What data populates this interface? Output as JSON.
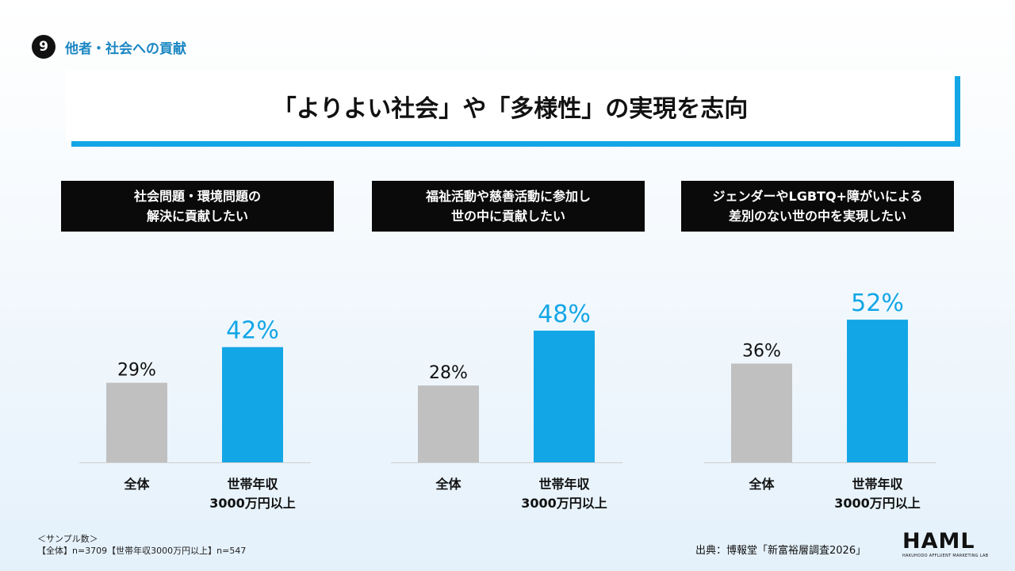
{
  "section": {
    "number": "9",
    "title": "他者・社会への貢献"
  },
  "title": "「よりよい社会」や「多様性」の実現を志向",
  "panels": [
    {
      "header": [
        "社会問題・環境問題の",
        "解決に貢献したい"
      ]
    },
    {
      "header": [
        "福祉活動や慈善活動に参加し",
        "世の中に貢献したい"
      ]
    },
    {
      "header": [
        "ジェンダーやLGBTQ+障がいによる",
        "差別のない世の中を実現したい"
      ]
    }
  ],
  "chart_data": [
    {
      "type": "bar",
      "categories": [
        "全体",
        "世帯年収\n3000万円以上"
      ],
      "values": [
        29,
        42
      ],
      "value_labels": [
        "29%",
        "42%"
      ],
      "title": "社会問題・環境問題の解決に貢献したい",
      "ylim": [
        0,
        60
      ]
    },
    {
      "type": "bar",
      "categories": [
        "全体",
        "世帯年収\n3000万円以上"
      ],
      "values": [
        28,
        48
      ],
      "value_labels": [
        "28%",
        "48%"
      ],
      "title": "福祉活動や慈善活動に参加し世の中に貢献したい",
      "ylim": [
        0,
        60
      ]
    },
    {
      "type": "bar",
      "categories": [
        "全体",
        "世帯年収\n3000万円以上"
      ],
      "values": [
        36,
        52
      ],
      "value_labels": [
        "36%",
        "52%"
      ],
      "title": "ジェンダーやLGBTQ+障がいによる差別のない世の中を実現したい",
      "ylim": [
        0,
        60
      ]
    }
  ],
  "colors": {
    "base_bar": "#c0c0c0",
    "highlight_bar": "#13a6e6",
    "highlight_label": "#13a6e6",
    "accent_title": "#1a86c2"
  },
  "footnote": {
    "line1": "＜サンプル数＞",
    "line2": "【全体】n=3709【世帯年収3000万円以上】n=547"
  },
  "source": "出典：博報堂「新富裕層調査2026」",
  "logo": {
    "main": "HAML",
    "sub": "HAKUHODO AFFLUENT MARKETING LAB"
  }
}
